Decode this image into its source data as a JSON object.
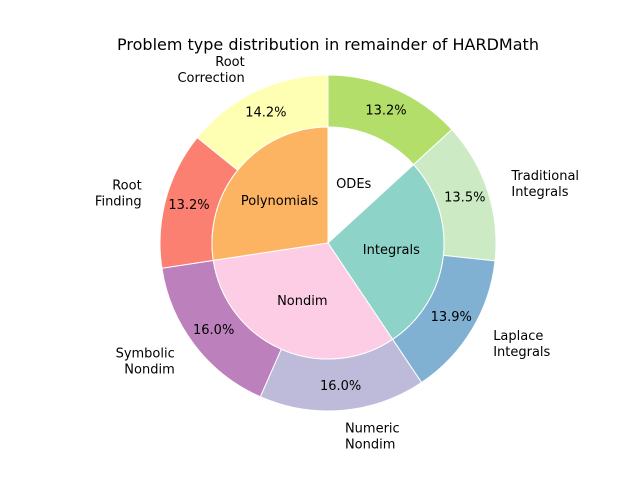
{
  "chart_data": {
    "type": "pie",
    "title": "Problem type distribution in remainder of HARDMath",
    "inner": {
      "categories": [
        "ODEs",
        "Integrals",
        "Nondim",
        "Polynomials"
      ],
      "values": [
        13.2,
        27.4,
        32.0,
        27.4
      ],
      "colors": [
        "#ffffff",
        "#8dd3c7",
        "#fccde5",
        "#fdb462"
      ]
    },
    "outer": {
      "categories": [
        [
          "",
          ""
        ],
        [
          "Traditional",
          "Integrals"
        ],
        [
          "Laplace",
          "Integrals"
        ],
        [
          "Numeric",
          "Nondim"
        ],
        [
          "Symbolic",
          "Nondim"
        ],
        [
          "Root",
          "Finding"
        ],
        [
          "Root",
          "Correction"
        ]
      ],
      "values": [
        13.2,
        13.5,
        13.9,
        16.0,
        16.0,
        13.2,
        14.2
      ],
      "value_labels": [
        "13.2%",
        "13.5%",
        "13.9%",
        "16.0%",
        "16.0%",
        "13.2%",
        "14.2%"
      ],
      "colors": [
        "#b3de69",
        "#ccebc5",
        "#80b1d3",
        "#bebada",
        "#bc80bd",
        "#fb8072",
        "#ffffb3"
      ]
    },
    "start_angle": "top",
    "direction": "clockwise"
  }
}
